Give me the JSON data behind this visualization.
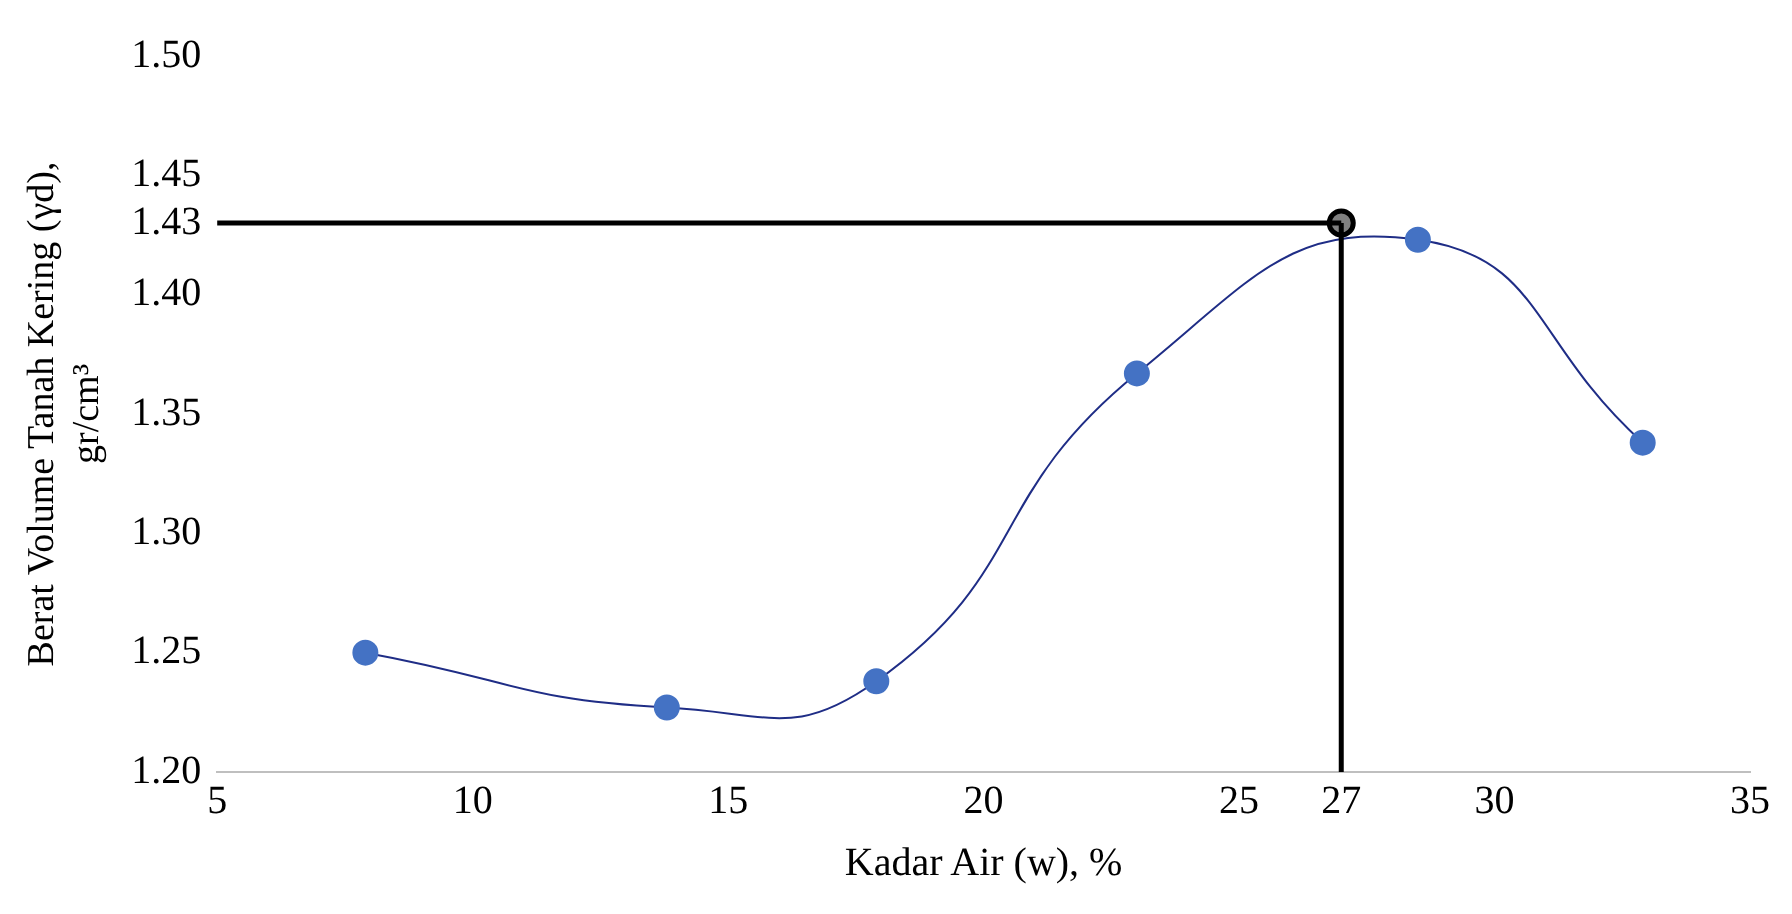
{
  "chart_data": {
    "type": "scatter",
    "xlabel": "Kadar Air (w), %",
    "ylabel": "Berat Volume Tanah Kering (γd), gr/cm³",
    "series": [
      {
        "type": "line",
        "color": "#1f2d86",
        "marker": "none",
        "x": [
          7.9,
          13.8,
          17.9,
          23.0,
          28.5,
          32.9
        ],
        "values": [
          1.25,
          1.227,
          1.238,
          1.367,
          1.423,
          1.338
        ]
      },
      {
        "color": "#4472c4",
        "marker": "circle",
        "x": [
          7.9,
          13.8,
          17.9,
          23.0,
          28.5,
          32.9
        ],
        "values": [
          1.25,
          1.227,
          1.238,
          1.367,
          1.423,
          1.338
        ]
      },
      {
        "color": "#808080",
        "marker": "circle",
        "x": [
          27
        ],
        "values": [
          1.43
        ]
      }
    ],
    "xlim": [
      5,
      35
    ],
    "xticks": [
      5,
      10,
      15,
      20,
      25,
      27,
      30,
      35
    ],
    "ylim": [
      1.2,
      1.5
    ],
    "yticks": [
      {
        "value": 1.2,
        "label": "1.20"
      },
      {
        "value": 1.25,
        "label": "1.25"
      },
      {
        "value": 1.3,
        "label": "1.30"
      },
      {
        "value": 1.35,
        "label": "1.35"
      },
      {
        "value": 1.4,
        "label": "1.40"
      },
      {
        "value": 1.43,
        "label": "1.43"
      },
      {
        "value": 1.45,
        "label": "1.45"
      },
      {
        "value": 1.5,
        "label": "1.50"
      }
    ],
    "ref_lines": [
      {
        "axis": "y",
        "value": 1.43,
        "color": "#000000"
      },
      {
        "axis": "x",
        "value": 27,
        "color": "#000000"
      }
    ],
    "grid": false,
    "legend": false
  }
}
